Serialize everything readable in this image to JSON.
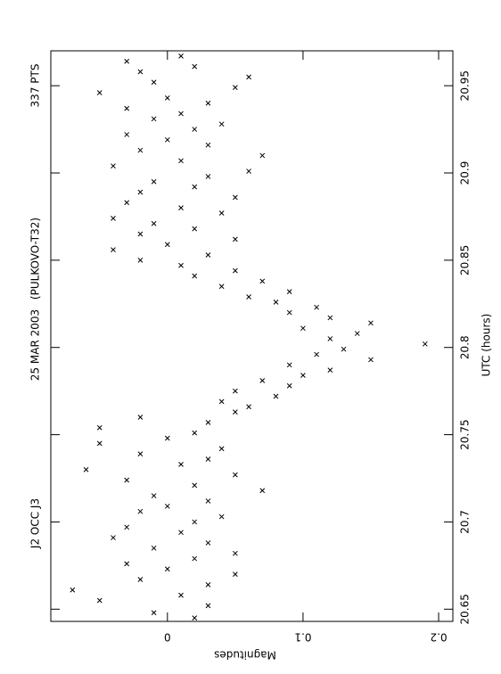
{
  "chart_data": {
    "type": "scatter",
    "title": "J2 OCC J3",
    "date": "25 MAR 2003",
    "observatory": "(PULKOVO-T32)",
    "points_label": "337 PTS",
    "x_label": "UTC (hours)",
    "y_label": "Magnitudes",
    "xlim": [
      20.643,
      20.97
    ],
    "xticks": [
      20.65,
      20.7,
      20.75,
      20.8,
      20.85,
      20.9,
      20.95
    ],
    "ylim": [
      -0.086,
      0.2105
    ],
    "yticks": [
      0,
      0.1,
      0.2
    ],
    "x": [
      20.645,
      20.648,
      20.652,
      20.655,
      20.658,
      20.661,
      20.664,
      20.667,
      20.67,
      20.673,
      20.676,
      20.679,
      20.682,
      20.685,
      20.688,
      20.691,
      20.694,
      20.697,
      20.7,
      20.703,
      20.706,
      20.709,
      20.712,
      20.715,
      20.718,
      20.721,
      20.724,
      20.727,
      20.73,
      20.733,
      20.736,
      20.739,
      20.742,
      20.745,
      20.748,
      20.751,
      20.754,
      20.757,
      20.76,
      20.763,
      20.766,
      20.769,
      20.772,
      20.775,
      20.778,
      20.781,
      20.784,
      20.787,
      20.79,
      20.793,
      20.796,
      20.799,
      20.802,
      20.805,
      20.808,
      20.811,
      20.814,
      20.817,
      20.82,
      20.823,
      20.826,
      20.829,
      20.832,
      20.835,
      20.838,
      20.841,
      20.844,
      20.847,
      20.85,
      20.853,
      20.856,
      20.859,
      20.862,
      20.865,
      20.868,
      20.871,
      20.874,
      20.877,
      20.88,
      20.883,
      20.886,
      20.889,
      20.892,
      20.895,
      20.898,
      20.901,
      20.904,
      20.907,
      20.91,
      20.913,
      20.916,
      20.919,
      20.922,
      20.925,
      20.928,
      20.931,
      20.934,
      20.937,
      20.94,
      20.943,
      20.946,
      20.949,
      20.952,
      20.955,
      20.958,
      20.961,
      20.964,
      20.967
    ],
    "series": [
      {
        "color": "#000000",
        "values": [
          0.02,
          -0.01,
          0.03,
          -0.05,
          0.01,
          -0.07,
          0.03,
          -0.02,
          0.05,
          0.0,
          -0.03,
          0.02,
          0.05,
          -0.01,
          0.03,
          -0.04,
          0.01,
          -0.03,
          0.02,
          0.04,
          -0.02,
          0.0,
          0.03,
          -0.01,
          0.07,
          0.02,
          -0.03,
          0.05,
          -0.06,
          0.01,
          0.03,
          -0.02,
          0.04,
          -0.05,
          0.0,
          0.02,
          -0.05,
          0.03,
          -0.02,
          0.05,
          0.06,
          0.04,
          0.08,
          0.05,
          0.09,
          0.07,
          0.1,
          0.12,
          0.09,
          0.15,
          0.11,
          0.13,
          0.19,
          0.12,
          0.14,
          0.1,
          0.15,
          0.12,
          0.09,
          0.11,
          0.08,
          0.06,
          0.09,
          0.04,
          0.07,
          0.02,
          0.05,
          0.01,
          -0.02,
          0.03,
          -0.04,
          0.0,
          0.05,
          -0.02,
          0.02,
          -0.01,
          -0.04,
          0.04,
          0.01,
          -0.03,
          0.05,
          -0.02,
          0.02,
          -0.01,
          0.03,
          0.06,
          -0.04,
          0.01,
          0.07,
          -0.02,
          0.03,
          0.0,
          -0.03,
          0.02,
          0.04,
          -0.01,
          0.01,
          -0.03,
          0.03,
          0.0,
          -0.05,
          0.05,
          -0.01,
          0.06,
          -0.02,
          0.02,
          -0.03,
          0.01
        ]
      }
    ]
  }
}
